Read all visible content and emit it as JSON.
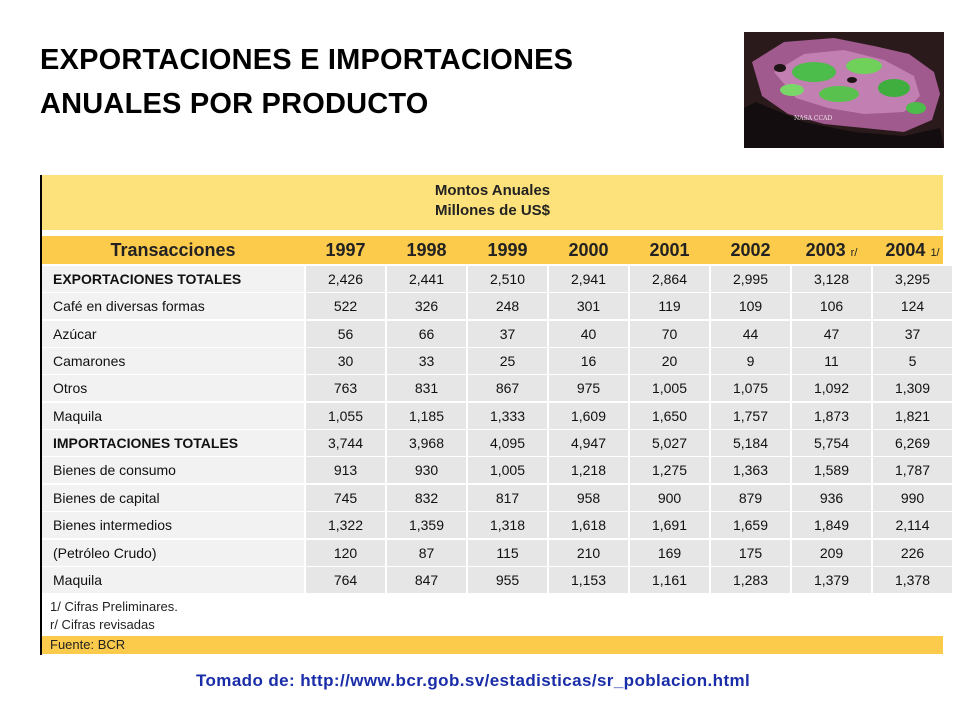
{
  "title_line1": "EXPORTACIONES E IMPORTACIONES",
  "title_line2": "ANUALES POR PRODUCTO",
  "map_caption": "NASA CCAD",
  "table": {
    "header_line1": "Montos Anuales",
    "header_line2": "Millones de US$",
    "col_label": "Transacciones",
    "years": [
      "1997",
      "1998",
      "1999",
      "2000",
      "2001",
      "2002",
      "2003",
      "2004"
    ],
    "year_marks": [
      "",
      "",
      "",
      "",
      "",
      "",
      "r/",
      "1/"
    ],
    "rows": [
      {
        "label": "EXPORTACIONES TOTALES",
        "bold": true,
        "values": [
          "2,426",
          "2,441",
          "2,510",
          "2,941",
          "2,864",
          "2,995",
          "3,128",
          "3,295"
        ]
      },
      {
        "label": "Café en diversas formas",
        "bold": false,
        "values": [
          "522",
          "326",
          "248",
          "301",
          "119",
          "109",
          "106",
          "124"
        ]
      },
      {
        "label": "Azúcar",
        "bold": false,
        "values": [
          "56",
          "66",
          "37",
          "40",
          "70",
          "44",
          "47",
          "37"
        ]
      },
      {
        "label": "Camarones",
        "bold": false,
        "values": [
          "30",
          "33",
          "25",
          "16",
          "20",
          "9",
          "11",
          "5"
        ]
      },
      {
        "label": "Otros",
        "bold": false,
        "values": [
          "763",
          "831",
          "867",
          "975",
          "1,005",
          "1,075",
          "1,092",
          "1,309"
        ]
      },
      {
        "label": "Maquila",
        "bold": false,
        "values": [
          "1,055",
          "1,185",
          "1,333",
          "1,609",
          "1,650",
          "1,757",
          "1,873",
          "1,821"
        ]
      },
      {
        "label": "IMPORTACIONES TOTALES",
        "bold": true,
        "values": [
          "3,744",
          "3,968",
          "4,095",
          "4,947",
          "5,027",
          "5,184",
          "5,754",
          "6,269"
        ]
      },
      {
        "label": "Bienes de consumo",
        "bold": false,
        "values": [
          "913",
          "930",
          "1,005",
          "1,218",
          "1,275",
          "1,363",
          "1,589",
          "1,787"
        ]
      },
      {
        "label": "Bienes de capital",
        "bold": false,
        "values": [
          "745",
          "832",
          "817",
          "958",
          "900",
          "879",
          "936",
          "990"
        ]
      },
      {
        "label": "Bienes intermedios",
        "bold": false,
        "values": [
          "1,322",
          "1,359",
          "1,318",
          "1,618",
          "1,691",
          "1,659",
          "1,849",
          "2,114"
        ]
      },
      {
        "label": "(Petróleo Crudo)",
        "bold": false,
        "values": [
          "120",
          "87",
          "115",
          "210",
          "169",
          "175",
          "209",
          "226"
        ]
      },
      {
        "label": "Maquila",
        "bold": false,
        "values": [
          "764",
          "847",
          "955",
          "1,153",
          "1,161",
          "1,283",
          "1,379",
          "1,378"
        ]
      }
    ],
    "footnotes": [
      "1/ Cifras Preliminares.",
      "r/ Cifras revisadas"
    ],
    "source_note": "Fuente: BCR"
  },
  "source_line": "Tomado de: http://www.bcr.gob.sv/estadisticas/sr_poblacion.html"
}
